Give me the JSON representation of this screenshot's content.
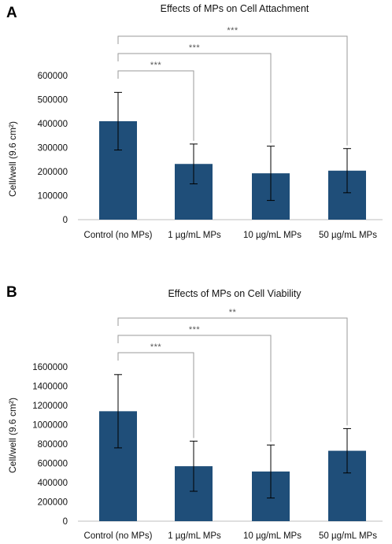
{
  "panel_labels": [
    "A",
    "B"
  ],
  "chart_data": [
    {
      "type": "bar",
      "title": "Effects of MPs on Cell Attachment",
      "xlabel": "",
      "ylabel": "Cell/well (9.6 cm²)",
      "categories": [
        "Control (no MPs)",
        "1 µg/mL MPs",
        "10 µg/mL MPs",
        "50 µg/mL MPs"
      ],
      "values": [
        410000,
        232000,
        193000,
        204000
      ],
      "error": [
        120000,
        83000,
        113000,
        92000
      ],
      "yticks": [
        0,
        100000,
        200000,
        300000,
        400000,
        500000,
        600000
      ],
      "ytick_labels": [
        "0",
        "100000",
        "200000",
        "300000",
        "400000",
        "500000",
        "600000"
      ],
      "ylim": [
        0,
        600000
      ],
      "grid": false,
      "legend": "none",
      "bar_color": "#1f4e79",
      "significance": [
        {
          "from": 0,
          "to": 1,
          "label": "***"
        },
        {
          "from": 0,
          "to": 2,
          "label": "***"
        },
        {
          "from": 0,
          "to": 3,
          "label": "***"
        }
      ]
    },
    {
      "type": "bar",
      "title": "Effects of MPs on Cell Viability",
      "xlabel": "",
      "ylabel": "Cell/well (9.6 cm²)",
      "categories": [
        "Control (no MPs)",
        "1 µg/mL MPs",
        "10 µg/mL MPs",
        "50 µg/mL MPs"
      ],
      "values": [
        1140000,
        570000,
        515000,
        730000
      ],
      "error": [
        380000,
        260000,
        275000,
        230000
      ],
      "yticks": [
        0,
        200000,
        400000,
        600000,
        800000,
        1000000,
        1200000,
        1400000,
        1600000
      ],
      "ytick_labels": [
        "0",
        "200000",
        "400000",
        "600000",
        "800000",
        "1000000",
        "1200000",
        "1400000",
        "1600000"
      ],
      "ylim": [
        0,
        1600000
      ],
      "grid": false,
      "legend": "none",
      "bar_color": "#1f4e79",
      "significance": [
        {
          "from": 0,
          "to": 1,
          "label": "***"
        },
        {
          "from": 0,
          "to": 2,
          "label": "***"
        },
        {
          "from": 0,
          "to": 3,
          "label": "**"
        }
      ]
    }
  ]
}
